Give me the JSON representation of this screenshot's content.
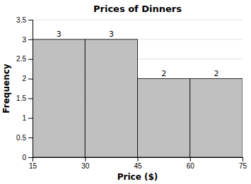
{
  "chart_data": {
    "type": "histogram",
    "title": "Prices of Dinners",
    "xlabel": "Price ($)",
    "ylabel": "Frequency",
    "bins": [
      15,
      30,
      45,
      60,
      75
    ],
    "values": [
      3,
      3,
      2,
      2
    ],
    "color": "#c0c0c0",
    "xlim": [
      15,
      75
    ],
    "xticks": [
      15,
      30,
      45,
      60,
      75
    ],
    "ylim": [
      0,
      3.5
    ],
    "yticks": [
      0,
      0.5,
      1,
      1.5,
      2,
      2.5,
      3,
      3.5
    ],
    "grid": true,
    "data_labels": true
  }
}
